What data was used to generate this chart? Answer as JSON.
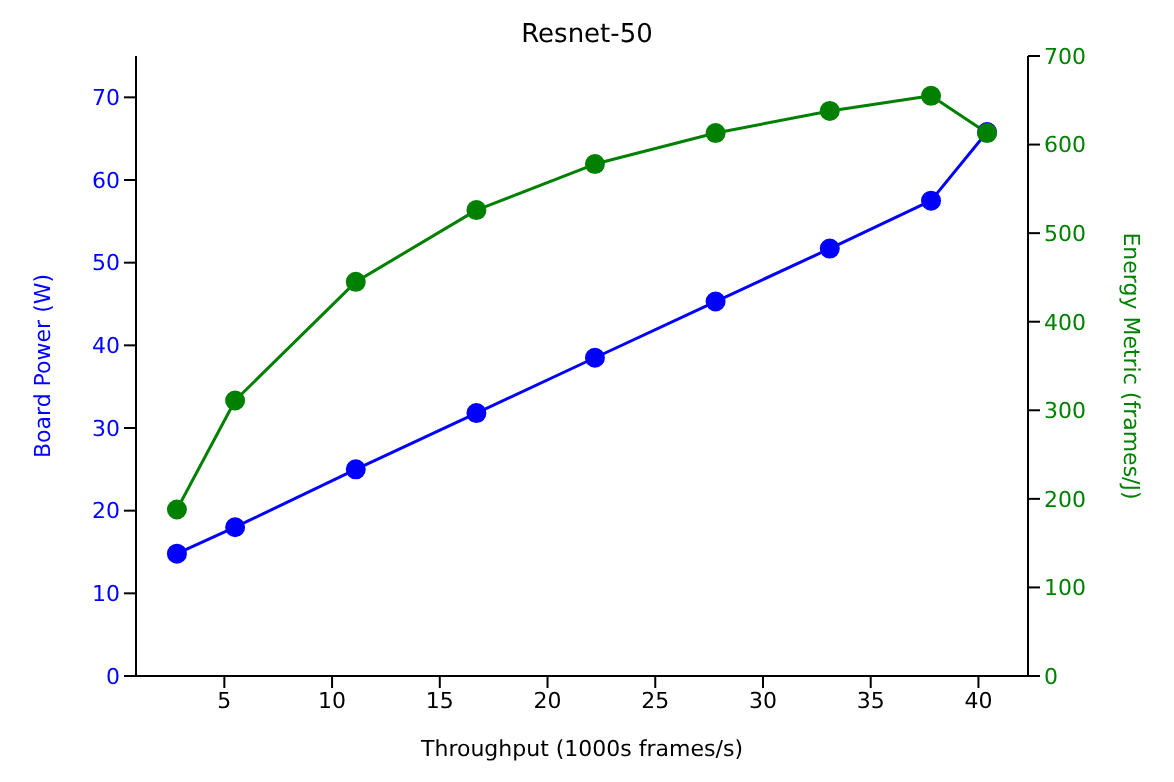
{
  "chart_data": {
    "type": "line",
    "title": "Resnet-50",
    "xlabel": "Throughput (1000s frames/s)",
    "ylabel": "Board Power (W)",
    "y2label": "Energy Metric (frames/J)",
    "x": [
      2.8,
      5.5,
      11.1,
      16.7,
      22.2,
      27.8,
      33.1,
      37.8,
      40.4
    ],
    "series": [
      {
        "color": "#0000ff",
        "values": [
          14.8,
          18,
          25,
          31.8,
          38.5,
          45.3,
          51.7,
          57.5,
          65.8
        ]
      },
      {
        "color": "#008000",
        "axis": "y2",
        "values": [
          188,
          311,
          445,
          526,
          578,
          613,
          638,
          655,
          613
        ]
      }
    ],
    "xlim": [
      0.9,
      42.3
    ],
    "xticks": [
      5,
      10,
      15,
      20,
      25,
      30,
      35,
      40
    ],
    "ylim": [
      0,
      75
    ],
    "yticks": [
      0,
      10,
      20,
      30,
      40,
      50,
      60,
      70
    ],
    "y2lim": [
      0,
      700
    ],
    "y2ticks": [
      0,
      100,
      200,
      300,
      400,
      500,
      600,
      700
    ],
    "marker": "circle",
    "line_style": "solid",
    "grid": false
  }
}
